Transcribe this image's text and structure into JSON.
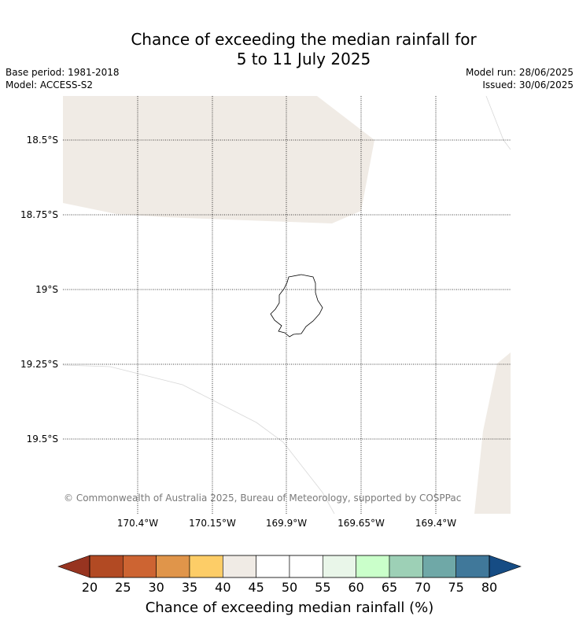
{
  "title": {
    "line1": "Chance of exceeding the median rainfall for",
    "line2": "5 to 11 July 2025"
  },
  "meta": {
    "base_period": "Base period: 1981-2018",
    "model": "Model: ACCESS-S2",
    "model_run": "Model run: 28/06/2025",
    "issued": "Issued: 30/06/2025"
  },
  "map": {
    "latitude_labels": [
      "18.5°S",
      "18.75°S",
      "19°S",
      "19.25°S",
      "19.5°S"
    ],
    "longitude_labels": [
      "170.4°W",
      "170.15°W",
      "169.9°W",
      "169.65°W",
      "169.4°W"
    ],
    "copyright": "© Commonwealth of Australia 2025, Bureau of Meteorology, supported by COSPPac",
    "land_fill": "#f0ebe5",
    "island": "Niue"
  },
  "colorbar": {
    "ticks": [
      "20",
      "25",
      "30",
      "35",
      "40",
      "45",
      "50",
      "55",
      "60",
      "65",
      "70",
      "75",
      "80"
    ],
    "colors": [
      "#b24a23",
      "#cd6432",
      "#e0954a",
      "#fdcd67",
      "#f0ebe5",
      "#ffffff",
      "#ffffff",
      "#e9f6e9",
      "#caffca",
      "#9dd0b6",
      "#6fa8a7",
      "#40789a"
    ],
    "under_color": "#973420",
    "over_color": "#164c84",
    "label": "Chance of exceeding median rainfall (%)"
  }
}
